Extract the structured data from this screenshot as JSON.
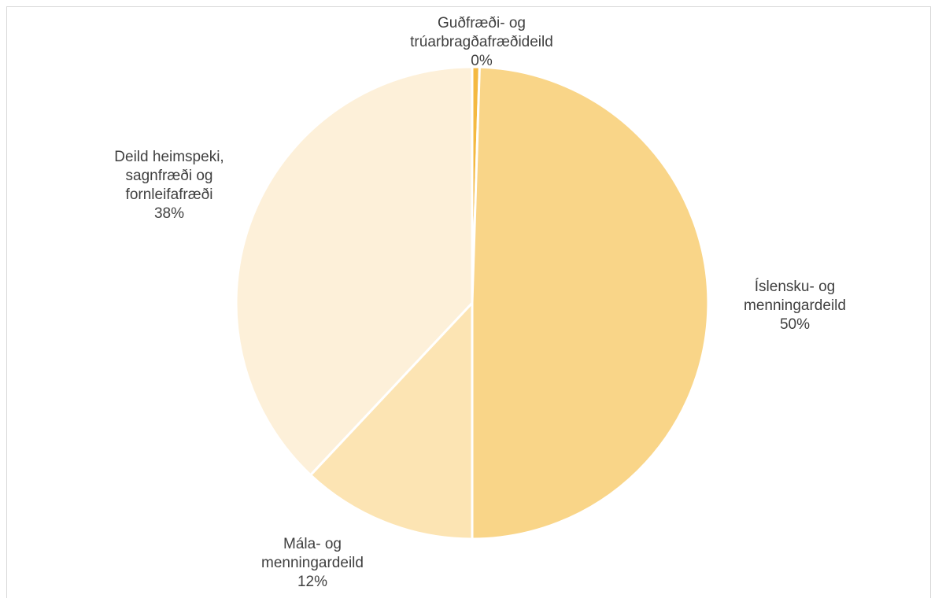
{
  "chart_data": {
    "type": "pie",
    "title": "",
    "categories": [
      "Guðfræði- og trúarbragðafræðideild",
      "Íslensku- og menningardeild",
      "Mála- og menningardeild",
      "Deild heimspeki, sagnfræði og fornleifafræði"
    ],
    "values": [
      0.5,
      49.5,
      12,
      38
    ],
    "percent_labels": [
      "0%",
      "50%",
      "12%",
      "38%"
    ],
    "label_lines": [
      [
        "Guðfræði- og",
        "trúarbragðafræðideild",
        "0%"
      ],
      [
        "Íslensku- og",
        "menningardeild",
        "50%"
      ],
      [
        "Mála- og",
        "menningardeild",
        "12%"
      ],
      [
        "Deild heimspeki,",
        "sagnfræði og",
        "fornleifafræði",
        "38%"
      ]
    ],
    "colors": [
      "#f4b942",
      "#f9d588",
      "#fce4b3",
      "#fdf0d9"
    ],
    "start_angle_deg": 0,
    "direction": "clockwise",
    "legend": "none"
  }
}
